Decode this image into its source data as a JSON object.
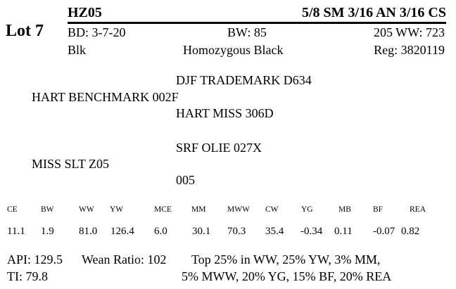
{
  "lot": "Lot 7",
  "animal": {
    "name": "HZ05",
    "breed_composition": "5/8 SM 3/16 AN 3/16 CS",
    "birth_date": "BD: 3-7-20",
    "birth_weight": "BW: 85",
    "wean_weight": "205 WW: 723",
    "color": "Blk",
    "genotype": "Homozygous Black",
    "registration": "Reg: 3820119"
  },
  "pedigree": {
    "sire": "HART BENCHMARK 002F",
    "sire_sire": "DJF TRADEMARK D634",
    "sire_dam": "HART MISS 306D",
    "dam": "MISS SLT Z05",
    "dam_sire": "SRF OLIE 027X",
    "dam_dam": "005"
  },
  "epds": {
    "labels": [
      "CE",
      "BW",
      "WW",
      "YW",
      "MCE",
      "MM",
      "MWW",
      "CW",
      "YG",
      "MB",
      "BF",
      "REA"
    ],
    "values": [
      "11.1",
      "1.9",
      "81.0",
      "126.4",
      "6.0",
      "30.1",
      "70.3",
      "35.4",
      "-0.34",
      "0.11",
      "-0.07",
      "0.82"
    ]
  },
  "indexes": {
    "api": "API: 129.5",
    "wean_ratio": "Wean Ratio: 102",
    "ti": "TI: 79.8",
    "top_line1": "Top 25% in WW,  25% YW,  3% MM,",
    "top_line2": "5% MWW,  20% YG,  15% BF,  20% REA"
  }
}
